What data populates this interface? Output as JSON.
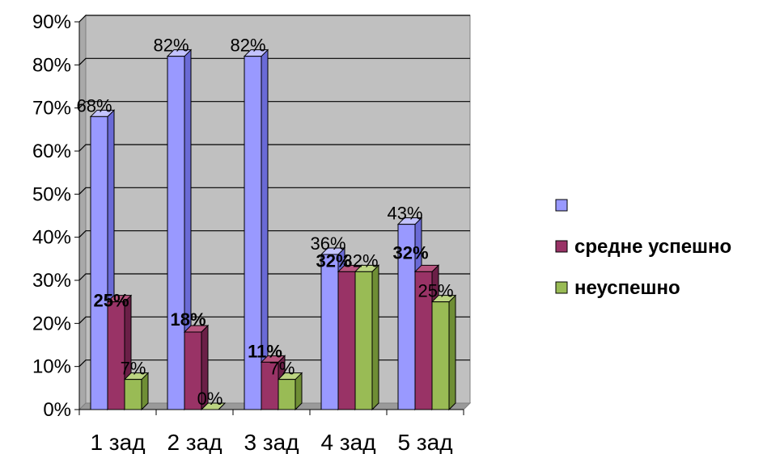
{
  "chart_data": {
    "type": "bar",
    "categories": [
      "1 зад",
      "2 зад",
      "3 зад",
      "4 зад",
      "5 зад"
    ],
    "series": [
      {
        "name": "",
        "color": "#9999ff",
        "side": "#6a6ad6",
        "top": "#c3c3ff",
        "values": [
          68,
          82,
          82,
          36,
          43
        ],
        "label_bold": false
      },
      {
        "name": "средне успешно",
        "color": "#993366",
        "side": "#6b1f47",
        "top": "#b8557f",
        "values": [
          25,
          18,
          11,
          32,
          32
        ],
        "label_bold": true
      },
      {
        "name": "неуспешно",
        "color": "#99bb55",
        "side": "#6f8e35",
        "top": "#bcd582",
        "values": [
          7,
          0,
          7,
          32,
          25
        ],
        "label_bold": false
      }
    ],
    "value_labels": [
      [
        "68%",
        "82%",
        "82%",
        "36%",
        "43%"
      ],
      [
        "25%",
        "18%",
        "11%",
        "32%",
        "32%"
      ],
      [
        "7%",
        "0%",
        "7%",
        "32%",
        "25%"
      ]
    ],
    "y_ticks": [
      "0%",
      "10%",
      "20%",
      "30%",
      "40%",
      "50%",
      "60%",
      "70%",
      "80%",
      "90%"
    ],
    "ylim": [
      0,
      90
    ],
    "grid": true,
    "legend": "right",
    "wall_color": "#c0c0c0",
    "title": "",
    "xlabel": "",
    "ylabel": ""
  }
}
